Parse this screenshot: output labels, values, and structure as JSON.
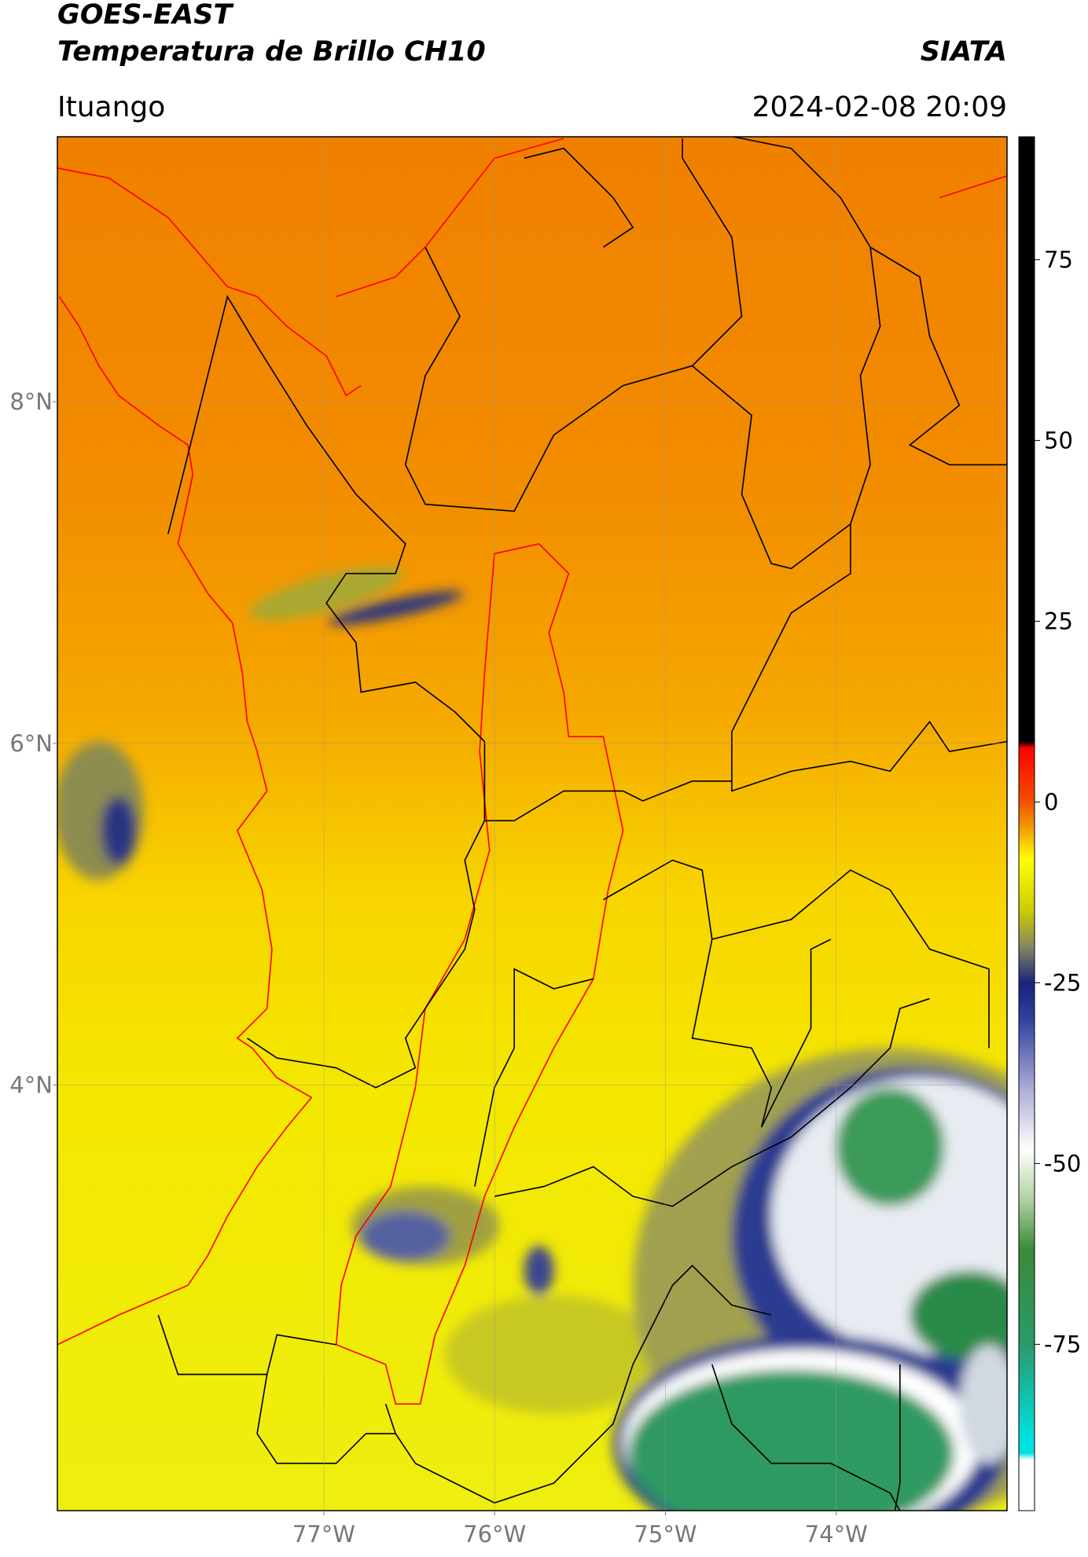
{
  "header": {
    "title": "GOES-EAST",
    "subtitle": "Temperatura de Brillo CH10",
    "source": "SIATA",
    "location": "Ituango",
    "datetime": "2024-02-08 20:09"
  },
  "map": {
    "xlim": [
      -78.56,
      -73.0
    ],
    "ylim": [
      1.51,
      9.55
    ],
    "xticks": [
      {
        "value": -77,
        "label": "77°W"
      },
      {
        "value": -76,
        "label": "76°W"
      },
      {
        "value": -75,
        "label": "75°W"
      },
      {
        "value": -74,
        "label": "74°W"
      }
    ],
    "yticks": [
      {
        "value": 8,
        "label": "8°N"
      },
      {
        "value": 6,
        "label": "6°N"
      },
      {
        "value": 4,
        "label": "4°N"
      }
    ],
    "grid": true
  },
  "colorbar": {
    "lim": [
      -98,
      92
    ],
    "ticks": [
      75,
      50,
      25,
      0,
      -25,
      -50,
      -75
    ]
  }
}
